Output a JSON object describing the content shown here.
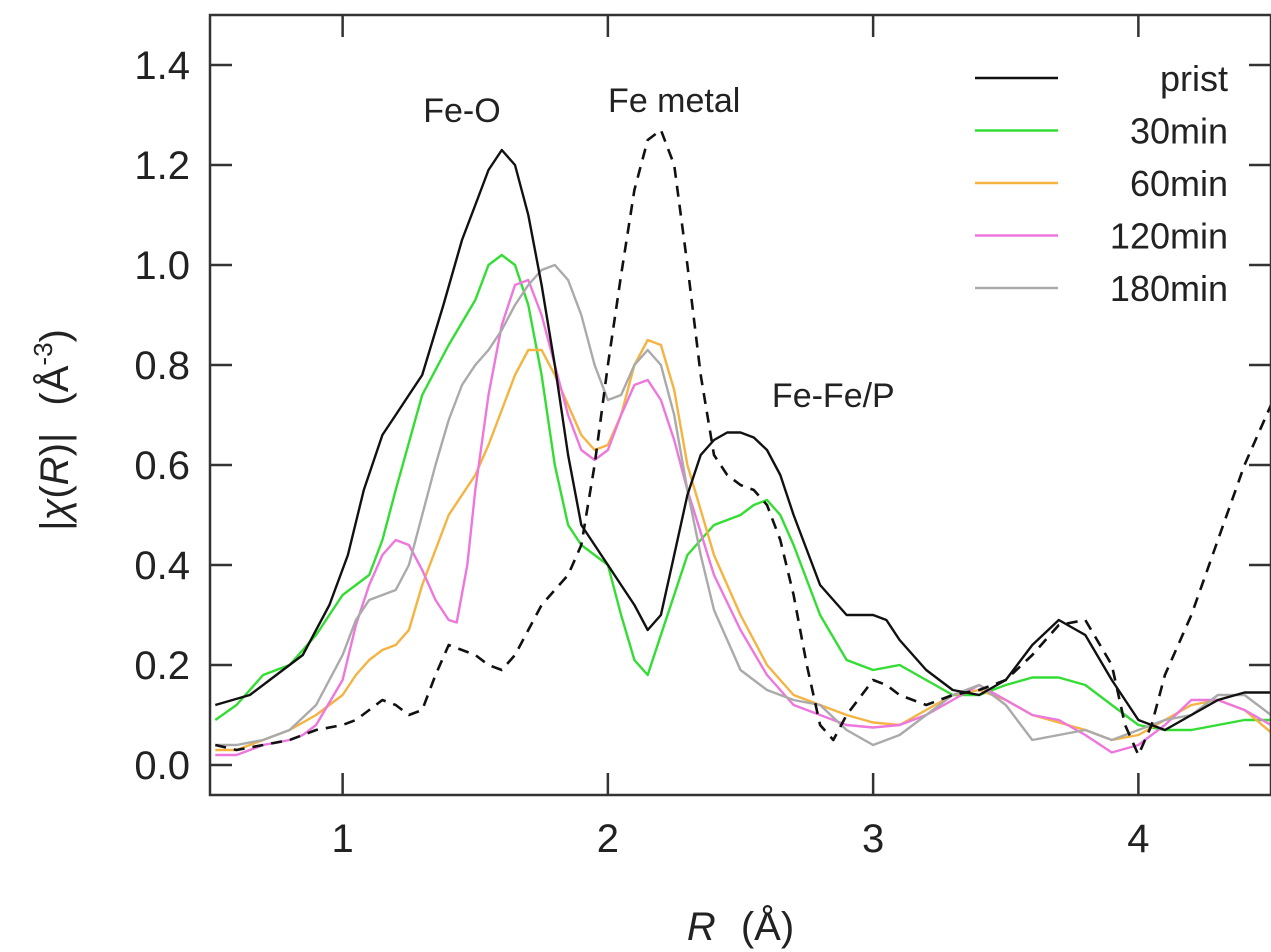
{
  "chart_data": {
    "type": "line",
    "x_label_var": "R",
    "x_label_unit": "(Å)",
    "y_label_pre": "|",
    "y_label_chi": "χ",
    "y_label_mid": "(",
    "y_label_var": "R",
    "y_label_post": ")|",
    "y_label_unit_pre": "(Å",
    "y_label_unit_exp": "-3",
    "y_label_unit_post": ")",
    "xlim": [
      0.5,
      4.5
    ],
    "ylim": [
      -0.06,
      1.5
    ],
    "x_ticks": [
      1,
      2,
      3,
      4
    ],
    "x_tick_labels": [
      "1",
      "2",
      "3",
      "4"
    ],
    "y_ticks": [
      0.0,
      0.2,
      0.4,
      0.6,
      0.8,
      1.0,
      1.2,
      1.4
    ],
    "y_tick_labels": [
      "0.0",
      "0.2",
      "0.4",
      "0.6",
      "0.8",
      "1.0",
      "1.2",
      "1.4"
    ],
    "legend_position": "top-right",
    "annotations": [
      {
        "text": "Fe-O",
        "x": 1.45,
        "y": 1.31
      },
      {
        "text": "Fe metal",
        "x": 2.25,
        "y": 1.33
      },
      {
        "text": "Fe-Fe/P",
        "x": 2.85,
        "y": 0.74
      }
    ],
    "series": [
      {
        "name": "prist",
        "color": "#111111",
        "dashed": false,
        "in_legend": true,
        "x": [
          0.52,
          0.65,
          0.75,
          0.85,
          0.95,
          1.02,
          1.08,
          1.15,
          1.2,
          1.25,
          1.3,
          1.38,
          1.45,
          1.5,
          1.55,
          1.6,
          1.65,
          1.7,
          1.75,
          1.8,
          1.85,
          1.9,
          2.0,
          2.05,
          2.1,
          2.15,
          2.2,
          2.25,
          2.3,
          2.35,
          2.4,
          2.45,
          2.5,
          2.55,
          2.6,
          2.65,
          2.7,
          2.8,
          2.9,
          3.0,
          3.05,
          3.1,
          3.2,
          3.3,
          3.4,
          3.5,
          3.6,
          3.7,
          3.8,
          3.9,
          4.0,
          4.1,
          4.2,
          4.3,
          4.4,
          4.5
        ],
        "y": [
          0.12,
          0.14,
          0.18,
          0.22,
          0.32,
          0.42,
          0.55,
          0.66,
          0.7,
          0.74,
          0.78,
          0.92,
          1.05,
          1.12,
          1.19,
          1.23,
          1.2,
          1.1,
          0.96,
          0.8,
          0.62,
          0.48,
          0.4,
          0.36,
          0.32,
          0.27,
          0.3,
          0.42,
          0.54,
          0.62,
          0.65,
          0.665,
          0.665,
          0.655,
          0.63,
          0.58,
          0.5,
          0.36,
          0.3,
          0.3,
          0.29,
          0.25,
          0.19,
          0.15,
          0.14,
          0.17,
          0.24,
          0.29,
          0.26,
          0.17,
          0.09,
          0.07,
          0.1,
          0.13,
          0.145,
          0.145
        ]
      },
      {
        "name": "30min",
        "color": "#33dd33",
        "dashed": false,
        "in_legend": true,
        "x": [
          0.52,
          0.6,
          0.7,
          0.8,
          0.9,
          1.0,
          1.05,
          1.1,
          1.15,
          1.2,
          1.3,
          1.4,
          1.5,
          1.55,
          1.6,
          1.65,
          1.7,
          1.75,
          1.8,
          1.85,
          1.9,
          2.0,
          2.05,
          2.1,
          2.15,
          2.2,
          2.3,
          2.4,
          2.5,
          2.55,
          2.6,
          2.65,
          2.7,
          2.8,
          2.9,
          3.0,
          3.1,
          3.2,
          3.3,
          3.4,
          3.5,
          3.6,
          3.7,
          3.8,
          3.9,
          4.0,
          4.1,
          4.2,
          4.3,
          4.4,
          4.5
        ],
        "y": [
          0.09,
          0.12,
          0.18,
          0.2,
          0.26,
          0.34,
          0.36,
          0.38,
          0.45,
          0.55,
          0.74,
          0.84,
          0.93,
          1.0,
          1.02,
          1.0,
          0.92,
          0.78,
          0.6,
          0.48,
          0.44,
          0.4,
          0.3,
          0.21,
          0.18,
          0.26,
          0.42,
          0.48,
          0.5,
          0.52,
          0.53,
          0.5,
          0.44,
          0.3,
          0.21,
          0.19,
          0.2,
          0.17,
          0.14,
          0.14,
          0.16,
          0.175,
          0.175,
          0.16,
          0.12,
          0.08,
          0.07,
          0.07,
          0.08,
          0.09,
          0.09
        ]
      },
      {
        "name": "60min",
        "color": "#f5b342",
        "dashed": false,
        "in_legend": true,
        "x": [
          0.52,
          0.6,
          0.7,
          0.8,
          0.9,
          1.0,
          1.05,
          1.1,
          1.15,
          1.2,
          1.25,
          1.3,
          1.4,
          1.5,
          1.55,
          1.6,
          1.65,
          1.7,
          1.75,
          1.8,
          1.85,
          1.9,
          1.95,
          2.0,
          2.05,
          2.1,
          2.15,
          2.2,
          2.25,
          2.3,
          2.4,
          2.5,
          2.6,
          2.7,
          2.8,
          2.9,
          3.0,
          3.1,
          3.2,
          3.3,
          3.4,
          3.5,
          3.6,
          3.7,
          3.8,
          3.9,
          4.0,
          4.1,
          4.2,
          4.3,
          4.4,
          4.5
        ],
        "y": [
          0.03,
          0.03,
          0.05,
          0.07,
          0.1,
          0.14,
          0.18,
          0.21,
          0.23,
          0.24,
          0.27,
          0.36,
          0.5,
          0.58,
          0.64,
          0.71,
          0.78,
          0.83,
          0.83,
          0.78,
          0.72,
          0.66,
          0.63,
          0.64,
          0.7,
          0.8,
          0.85,
          0.84,
          0.75,
          0.6,
          0.42,
          0.3,
          0.2,
          0.14,
          0.12,
          0.1,
          0.085,
          0.08,
          0.11,
          0.14,
          0.15,
          0.13,
          0.1,
          0.085,
          0.07,
          0.05,
          0.06,
          0.09,
          0.12,
          0.13,
          0.11,
          0.065
        ]
      },
      {
        "name": "120min",
        "color": "#ee77dd",
        "dashed": false,
        "in_legend": true,
        "x": [
          0.52,
          0.6,
          0.7,
          0.8,
          0.85,
          0.9,
          1.0,
          1.05,
          1.1,
          1.15,
          1.2,
          1.25,
          1.3,
          1.35,
          1.4,
          1.43,
          1.47,
          1.5,
          1.55,
          1.6,
          1.65,
          1.7,
          1.75,
          1.8,
          1.85,
          1.9,
          1.95,
          2.0,
          2.05,
          2.1,
          2.15,
          2.2,
          2.25,
          2.3,
          2.4,
          2.5,
          2.6,
          2.7,
          2.8,
          2.9,
          3.0,
          3.1,
          3.2,
          3.3,
          3.4,
          3.5,
          3.6,
          3.7,
          3.8,
          3.9,
          4.0,
          4.1,
          4.2,
          4.3,
          4.4,
          4.5
        ],
        "y": [
          0.02,
          0.02,
          0.04,
          0.05,
          0.06,
          0.08,
          0.17,
          0.28,
          0.36,
          0.42,
          0.45,
          0.44,
          0.39,
          0.33,
          0.29,
          0.285,
          0.4,
          0.55,
          0.74,
          0.88,
          0.96,
          0.97,
          0.9,
          0.8,
          0.7,
          0.63,
          0.61,
          0.63,
          0.7,
          0.76,
          0.77,
          0.73,
          0.65,
          0.55,
          0.38,
          0.27,
          0.18,
          0.12,
          0.1,
          0.08,
          0.075,
          0.08,
          0.1,
          0.13,
          0.16,
          0.13,
          0.1,
          0.09,
          0.06,
          0.025,
          0.04,
          0.08,
          0.13,
          0.13,
          0.11,
          0.08
        ]
      },
      {
        "name": "180min",
        "color": "#aaaaaa",
        "dashed": false,
        "in_legend": true,
        "x": [
          0.52,
          0.6,
          0.7,
          0.8,
          0.9,
          1.0,
          1.05,
          1.1,
          1.15,
          1.2,
          1.25,
          1.3,
          1.35,
          1.4,
          1.45,
          1.5,
          1.55,
          1.6,
          1.65,
          1.7,
          1.75,
          1.8,
          1.85,
          1.9,
          1.95,
          2.0,
          2.05,
          2.1,
          2.15,
          2.2,
          2.25,
          2.3,
          2.35,
          2.4,
          2.5,
          2.6,
          2.7,
          2.8,
          2.9,
          3.0,
          3.1,
          3.2,
          3.3,
          3.4,
          3.5,
          3.6,
          3.7,
          3.8,
          3.9,
          4.0,
          4.1,
          4.2,
          4.3,
          4.4,
          4.5
        ],
        "y": [
          0.04,
          0.04,
          0.05,
          0.07,
          0.12,
          0.22,
          0.29,
          0.33,
          0.34,
          0.35,
          0.4,
          0.5,
          0.6,
          0.69,
          0.76,
          0.8,
          0.83,
          0.87,
          0.92,
          0.96,
          0.99,
          1.0,
          0.97,
          0.9,
          0.8,
          0.73,
          0.74,
          0.8,
          0.83,
          0.8,
          0.7,
          0.55,
          0.42,
          0.31,
          0.19,
          0.15,
          0.13,
          0.12,
          0.07,
          0.04,
          0.06,
          0.1,
          0.14,
          0.16,
          0.12,
          0.05,
          0.06,
          0.07,
          0.05,
          0.07,
          0.09,
          0.1,
          0.14,
          0.14,
          0.1
        ]
      },
      {
        "name": "Fe metal",
        "color": "#111111",
        "dashed": true,
        "in_legend": false,
        "x": [
          0.52,
          0.6,
          0.7,
          0.8,
          0.9,
          1.0,
          1.05,
          1.1,
          1.15,
          1.2,
          1.25,
          1.3,
          1.35,
          1.4,
          1.45,
          1.5,
          1.55,
          1.6,
          1.65,
          1.7,
          1.75,
          1.8,
          1.85,
          1.9,
          1.95,
          2.0,
          2.05,
          2.1,
          2.15,
          2.2,
          2.25,
          2.3,
          2.35,
          2.4,
          2.45,
          2.5,
          2.55,
          2.6,
          2.65,
          2.7,
          2.75,
          2.8,
          2.85,
          2.9,
          3.0,
          3.05,
          3.1,
          3.2,
          3.3,
          3.4,
          3.5,
          3.6,
          3.7,
          3.8,
          3.9,
          3.95,
          4.0,
          4.05,
          4.1,
          4.2,
          4.3,
          4.4,
          4.5
        ],
        "y": [
          0.04,
          0.03,
          0.04,
          0.05,
          0.07,
          0.08,
          0.09,
          0.11,
          0.13,
          0.12,
          0.1,
          0.11,
          0.18,
          0.24,
          0.23,
          0.22,
          0.2,
          0.19,
          0.22,
          0.27,
          0.32,
          0.35,
          0.38,
          0.44,
          0.6,
          0.8,
          0.98,
          1.15,
          1.25,
          1.27,
          1.2,
          1.0,
          0.78,
          0.62,
          0.58,
          0.56,
          0.55,
          0.52,
          0.45,
          0.34,
          0.2,
          0.08,
          0.05,
          0.1,
          0.17,
          0.16,
          0.14,
          0.12,
          0.14,
          0.15,
          0.17,
          0.22,
          0.28,
          0.29,
          0.2,
          0.08,
          0.02,
          0.08,
          0.18,
          0.3,
          0.45,
          0.6,
          0.72
        ]
      }
    ]
  }
}
